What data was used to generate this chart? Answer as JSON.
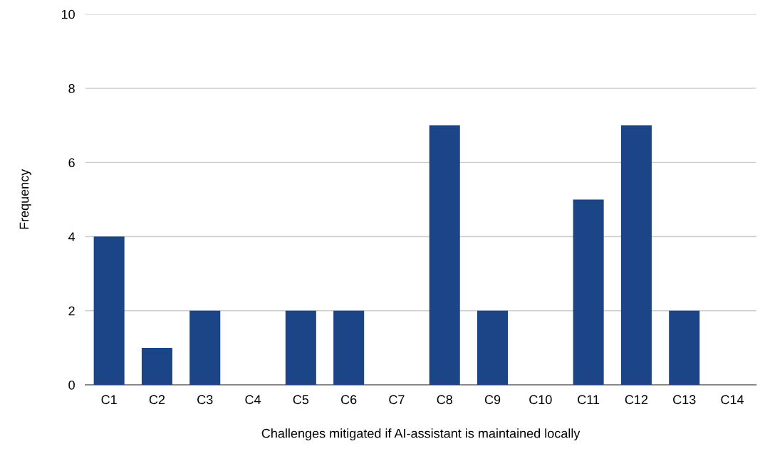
{
  "chart_data": {
    "type": "bar",
    "xlabel": "Challenges mitigated if AI-assistant is maintained locally",
    "ylabel": "Frequency",
    "categories": [
      "C1",
      "C2",
      "C3",
      "C4",
      "C5",
      "C6",
      "C7",
      "C8",
      "C9",
      "C10",
      "C11",
      "C12",
      "C13",
      "C14"
    ],
    "values": [
      4,
      1,
      2,
      0,
      2,
      2,
      0,
      7,
      2,
      0,
      5,
      7,
      2,
      0
    ],
    "color": "#1c4587",
    "ylim": [
      0,
      10
    ],
    "yticks": [
      0,
      2,
      4,
      6,
      8,
      10
    ],
    "grid": "y",
    "legend": false
  }
}
